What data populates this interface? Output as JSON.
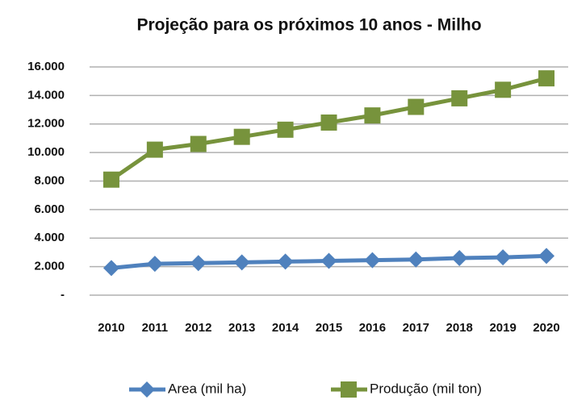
{
  "chart_data": {
    "type": "line",
    "title": "Projeção para os próximos 10 anos - Milho",
    "categories": [
      "2010",
      "2011",
      "2012",
      "2013",
      "2014",
      "2015",
      "2016",
      "2017",
      "2018",
      "2019",
      "2020"
    ],
    "series": [
      {
        "name": "Area (mil ha)",
        "color": "#4f81bd",
        "marker": "diamond",
        "values": [
          1900,
          2200,
          2250,
          2300,
          2350,
          2400,
          2450,
          2500,
          2600,
          2650,
          2750
        ]
      },
      {
        "name": "Produção (mil ton)",
        "color": "#77933c",
        "marker": "square",
        "values": [
          8100,
          10200,
          10600,
          11100,
          11600,
          12100,
          12600,
          13200,
          13800,
          14400,
          15200
        ]
      }
    ],
    "ylim": [
      0,
      16000
    ],
    "yticks": [
      {
        "value": 0,
        "label": "-"
      },
      {
        "value": 2000,
        "label": "2.000"
      },
      {
        "value": 4000,
        "label": "4.000"
      },
      {
        "value": 6000,
        "label": "6.000"
      },
      {
        "value": 8000,
        "label": "8.000"
      },
      {
        "value": 10000,
        "label": "10.000"
      },
      {
        "value": 12000,
        "label": "12.000"
      },
      {
        "value": 14000,
        "label": "14.000"
      },
      {
        "value": 16000,
        "label": "16.000"
      }
    ],
    "grid": true,
    "legend": "bottom"
  }
}
